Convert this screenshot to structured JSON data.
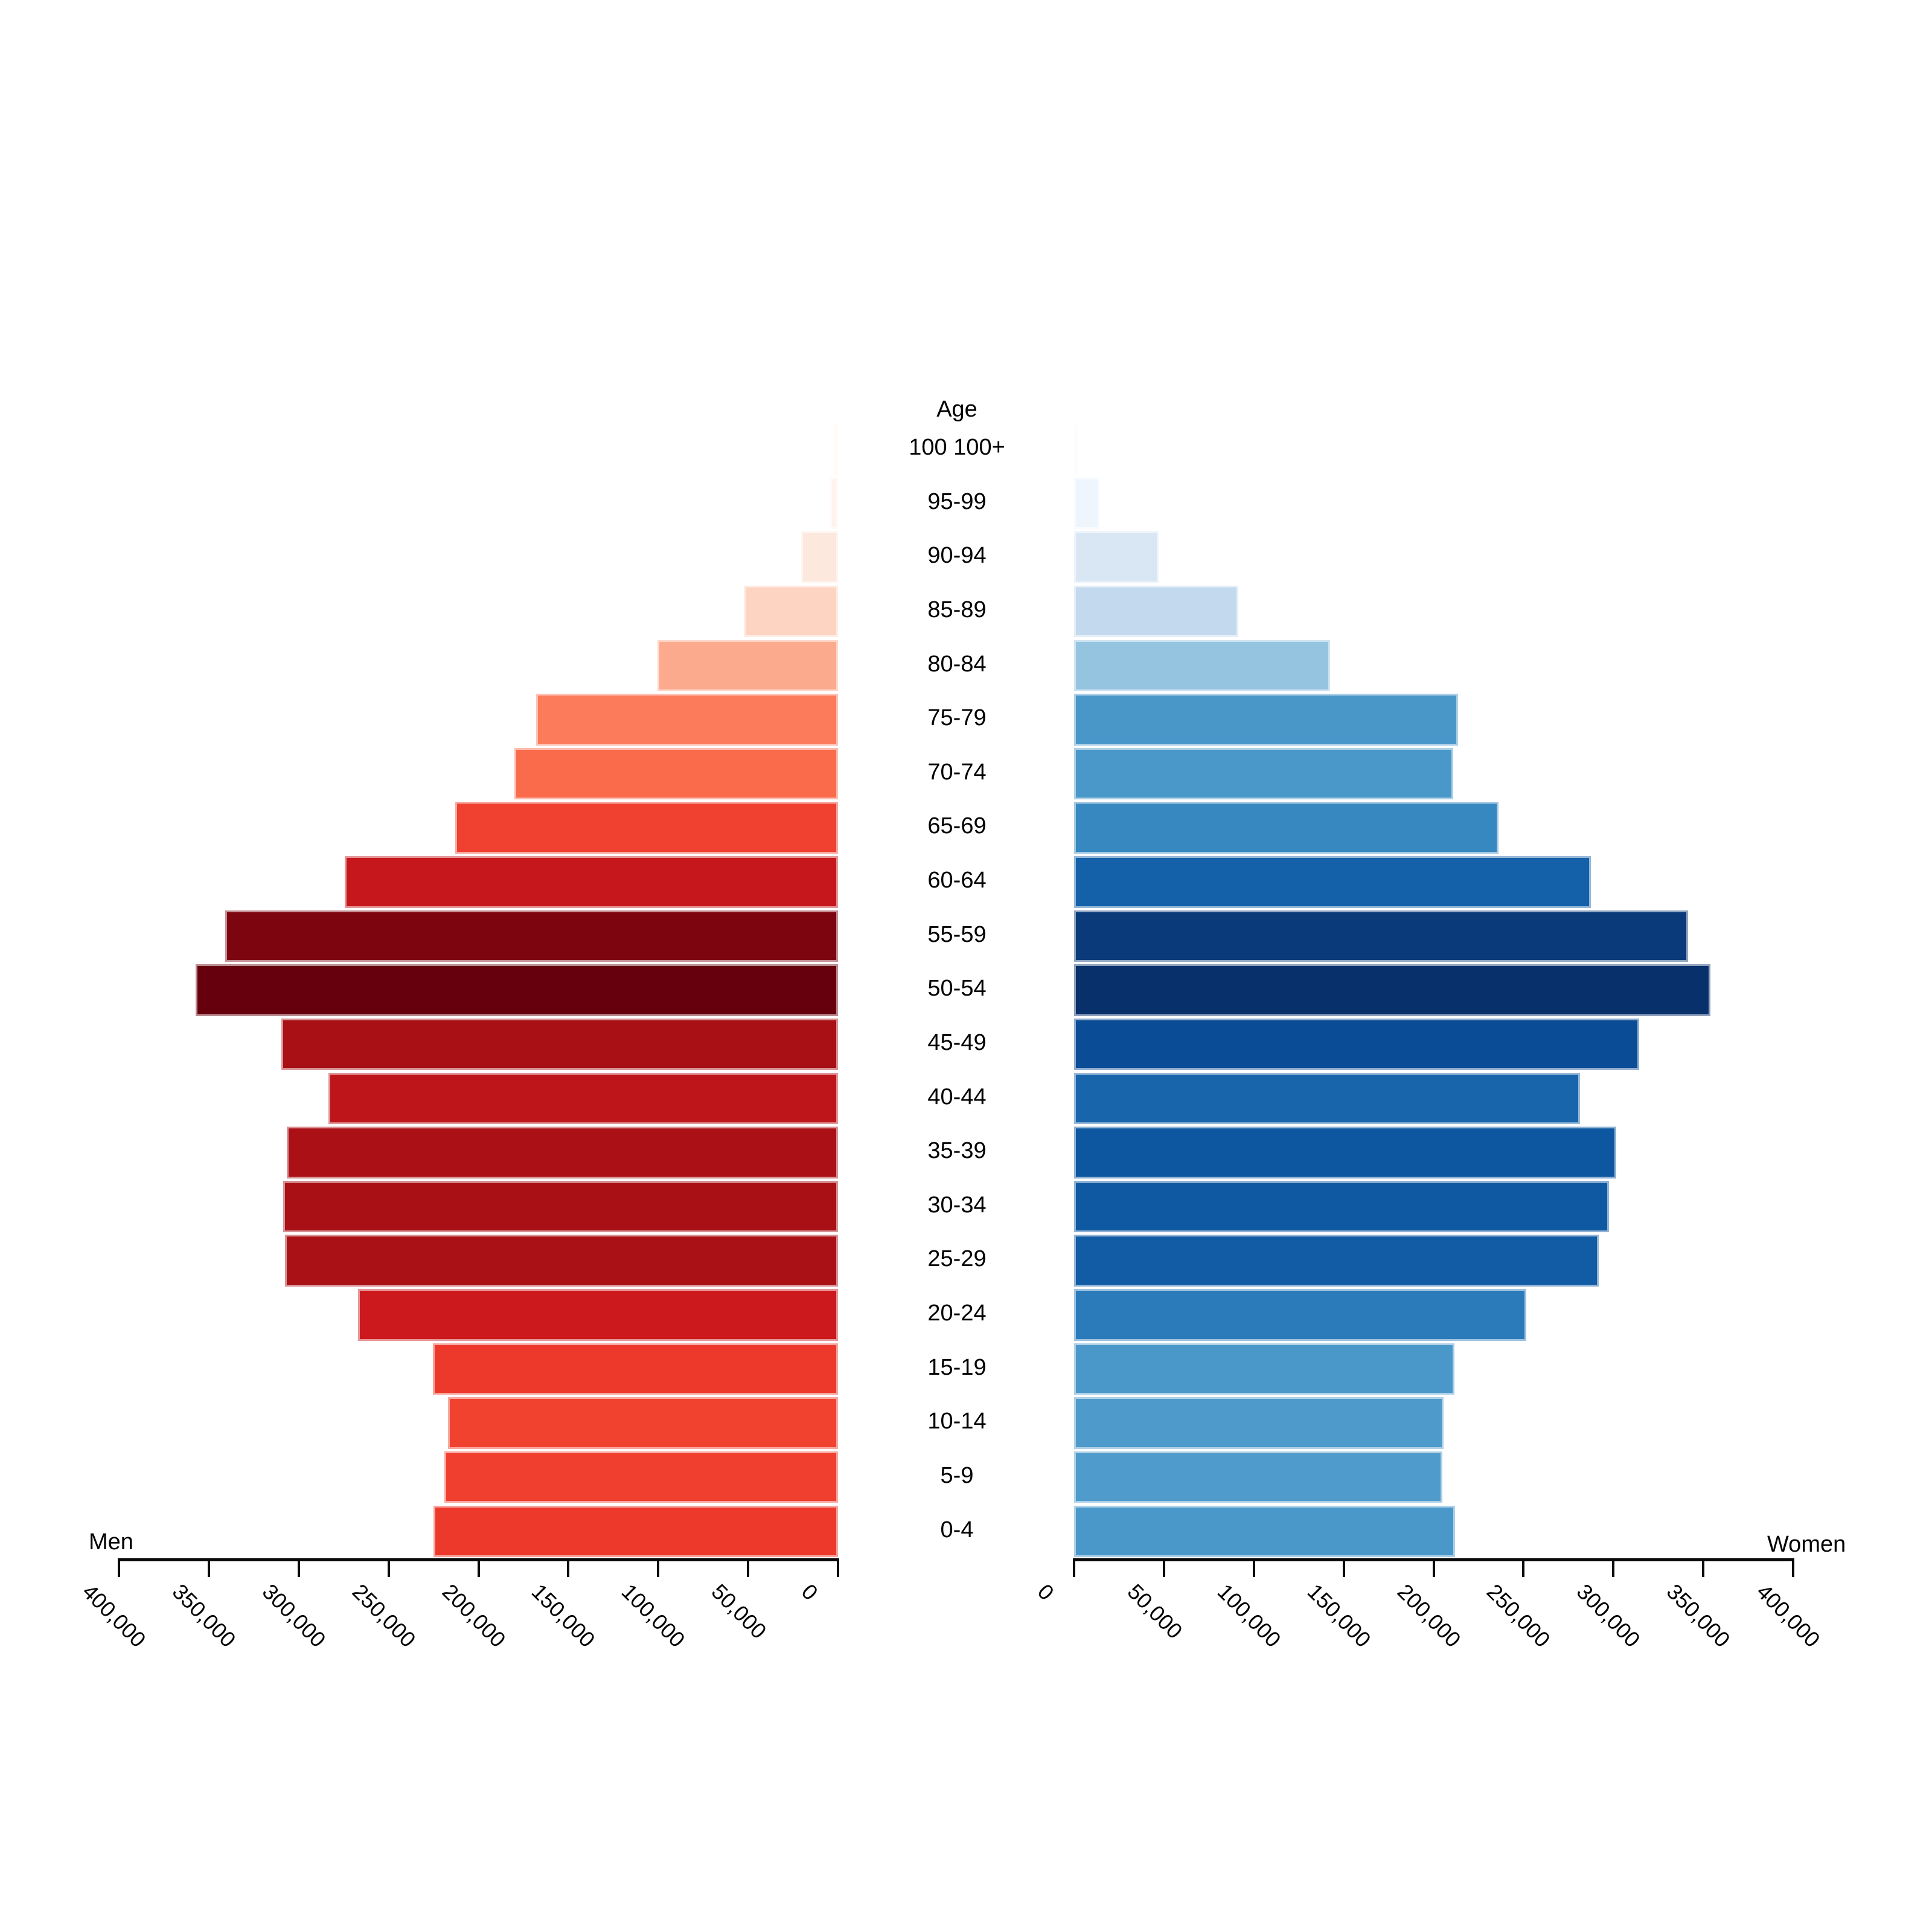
{
  "labels": {
    "men": "Men",
    "women": "Women",
    "age_title": "Age"
  },
  "chart_data": {
    "type": "bar",
    "subtype": "population-pyramid",
    "title": "",
    "center_axis_title": "Age",
    "xlabel_left": "Men",
    "xlabel_right": "Women",
    "grid": false,
    "categories": [
      "100 100+",
      "95-99",
      "90-94",
      "85-89",
      "80-84",
      "75-79",
      "70-74",
      "65-69",
      "60-64",
      "55-59",
      "50-54",
      "45-49",
      "40-44",
      "35-39",
      "30-34",
      "25-29",
      "20-24",
      "15-19",
      "10-14",
      "5-9",
      "0-4"
    ],
    "series": [
      {
        "name": "Men",
        "side": "left",
        "values": [
          2000,
          4500,
          20500,
          52500,
          100500,
          168000,
          180000,
          213000,
          274500,
          341000,
          357500,
          309500,
          283500,
          306500,
          308500,
          307500,
          267000,
          225500,
          217000,
          219000,
          225000
        ],
        "colors": [
          "#fff5f0",
          "#fef3ed",
          "#fde8dd",
          "#fdd4c2",
          "#fcaa8d",
          "#fb7b5b",
          "#fa6b4b",
          "#f0402f",
          "#c5171c",
          "#7d0510",
          "#67000d",
          "#a81016",
          "#bd151a",
          "#aa1016",
          "#a91016",
          "#a91116",
          "#cb191d",
          "#ed392c",
          "#f1412f",
          "#f03f2f",
          "#ed392c"
        ]
      },
      {
        "name": "Women",
        "side": "right",
        "values": [
          2500,
          14000,
          47000,
          91500,
          142500,
          213500,
          211000,
          236000,
          287500,
          341500,
          354000,
          314500,
          281500,
          301500,
          297500,
          292000,
          251500,
          211500,
          205500,
          205000,
          212000
        ],
        "colors": [
          "#f7fbff",
          "#eff5fc",
          "#d9e7f5",
          "#c3d9ee",
          "#94c4e0",
          "#4997c9",
          "#4a98ca",
          "#3787c0",
          "#1561a9",
          "#0a3a79",
          "#08306b",
          "#0a4d96",
          "#1865ac",
          "#0c57a0",
          "#0e59a2",
          "#115ca4",
          "#2b7bba",
          "#4a98ca",
          "#4e9acb",
          "#4f9bcc",
          "#4a98ca"
        ]
      }
    ],
    "axis": {
      "min": 0,
      "max": 400000,
      "tick_step": 50000,
      "left_tick_labels": [
        "400,000",
        "350,000",
        "300,000",
        "250,000",
        "200,000",
        "150,000",
        "100,000",
        "50,000",
        "0"
      ],
      "right_tick_labels": [
        "0",
        "50,000",
        "100,000",
        "150,000",
        "200,000",
        "250,000",
        "300,000",
        "350,000",
        "400,000"
      ]
    }
  }
}
